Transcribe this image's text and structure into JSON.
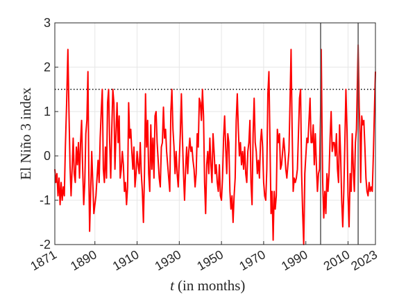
{
  "chart_data": {
    "type": "line",
    "ylabel": "El Niño 3 index",
    "xlabel_var": "t",
    "xlabel": "(in months)",
    "xlim": [
      1871,
      2023
    ],
    "ylim": [
      -2,
      3
    ],
    "xticks": [
      1871,
      1890,
      1910,
      1930,
      1950,
      1970,
      1990,
      2010,
      2023
    ],
    "yticks": [
      -2,
      -1,
      0,
      1,
      2,
      3
    ],
    "grid": true,
    "threshold": 1.5,
    "threshold_color": "#000000",
    "vlines": [
      1997.0,
      2014.8
    ],
    "vline_color": "#555555",
    "series": [
      {
        "color": "#ff0000",
        "x": [
          1871,
          1871.5,
          1872,
          1872.5,
          1873,
          1873.5,
          1874,
          1874.5,
          1875,
          1875.5,
          1876,
          1876.6,
          1877.2,
          1877.7,
          1878.2,
          1878.7,
          1879.2,
          1879.7,
          1880.2,
          1880.7,
          1881.2,
          1881.7,
          1882.2,
          1882.7,
          1883.2,
          1883.7,
          1884.2,
          1884.7,
          1885.2,
          1885.7,
          1886.2,
          1886.7,
          1887.1,
          1887.5,
          1888,
          1888.5,
          1889,
          1889.5,
          1890,
          1890.5,
          1891,
          1891.5,
          1892,
          1892.5,
          1893,
          1893.5,
          1894,
          1894.5,
          1895,
          1895.5,
          1896,
          1896.5,
          1897,
          1897.5,
          1898,
          1898.5,
          1899,
          1899.5,
          1900,
          1900.5,
          1901,
          1901.5,
          1902,
          1902.5,
          1903,
          1903.5,
          1904,
          1904.5,
          1905,
          1905.5,
          1906,
          1906.5,
          1907,
          1907.5,
          1908,
          1908.5,
          1909,
          1909.5,
          1910,
          1910.5,
          1911,
          1911.5,
          1912,
          1912.5,
          1913,
          1913.5,
          1914,
          1914.5,
          1915,
          1915.5,
          1916,
          1916.5,
          1917,
          1917.5,
          1918,
          1918.5,
          1919,
          1919.5,
          1920,
          1920.5,
          1921,
          1921.5,
          1922,
          1922.5,
          1923,
          1923.5,
          1924,
          1924.5,
          1925,
          1925.5,
          1926,
          1926.5,
          1927,
          1927.5,
          1928,
          1928.5,
          1929,
          1929.5,
          1930,
          1930.5,
          1931,
          1931.5,
          1932,
          1932.5,
          1933,
          1933.5,
          1934,
          1934.5,
          1935,
          1935.5,
          1936,
          1936.5,
          1937,
          1937.5,
          1938,
          1938.5,
          1939,
          1939.5,
          1940,
          1940.5,
          1941,
          1941.5,
          1942,
          1942.5,
          1943,
          1943.5,
          1944,
          1944.5,
          1945,
          1945.5,
          1946,
          1946.5,
          1947,
          1947.5,
          1948,
          1948.5,
          1949,
          1949.5,
          1950,
          1950.5,
          1951,
          1951.5,
          1952,
          1952.5,
          1953,
          1953.5,
          1954,
          1954.5,
          1955,
          1955.5,
          1956,
          1956.5,
          1957,
          1957.5,
          1958,
          1958.5,
          1959,
          1959.5,
          1960,
          1960.5,
          1961,
          1961.5,
          1962,
          1962.5,
          1963,
          1963.5,
          1964,
          1964.5,
          1965,
          1965.5,
          1966,
          1966.5,
          1967,
          1967.5,
          1968,
          1968.5,
          1969,
          1969.5,
          1970,
          1970.5,
          1971,
          1971.5,
          1972,
          1972.5,
          1973,
          1973.5,
          1974,
          1974.5,
          1975,
          1975.5,
          1976,
          1976.5,
          1977,
          1977.5,
          1978,
          1978.5,
          1979,
          1979.5,
          1980,
          1980.5,
          1981,
          1981.5,
          1982,
          1982.5,
          1983,
          1983.5,
          1984,
          1984.5,
          1985,
          1985.5,
          1986,
          1986.5,
          1987,
          1987.5,
          1988,
          1988.5,
          1989,
          1989.5,
          1990,
          1990.5,
          1991,
          1991.5,
          1992,
          1992.5,
          1993,
          1993.5,
          1994,
          1994.5,
          1995,
          1995.5,
          1996,
          1996.5,
          1997.0,
          1997.3,
          1997.7,
          1998.0,
          1998.5,
          1999,
          1999.5,
          2000,
          2000.5,
          2001,
          2001.5,
          2002,
          2002.5,
          2003,
          2003.5,
          2004,
          2004.5,
          2005,
          2005.5,
          2006,
          2006.5,
          2007,
          2007.5,
          2008,
          2008.5,
          2009,
          2009.5,
          2010,
          2010.5,
          2011,
          2011.5,
          2012,
          2012.5,
          2013,
          2013.5,
          2014,
          2014.8,
          2015.3,
          2015.7,
          2016,
          2016.5,
          2017,
          2017.5,
          2018,
          2018.5,
          2019,
          2019.5,
          2020,
          2020.5,
          2021,
          2021.5,
          2022,
          2022.5,
          2023
        ],
        "values": [
          -0.3,
          -0.6,
          -0.4,
          -0.9,
          -0.5,
          -1.1,
          -0.6,
          -1.0,
          -0.7,
          -0.9,
          0.2,
          1.2,
          2.4,
          1.0,
          -0.2,
          -0.9,
          -0.3,
          0.4,
          -0.4,
          -0.6,
          0.2,
          -0.2,
          0.3,
          -0.5,
          0.3,
          0.8,
          -0.3,
          -1.1,
          -0.6,
          0.5,
          0.8,
          1.9,
          -0.3,
          -1.7,
          -0.8,
          0.1,
          -0.6,
          -1.3,
          -1.1,
          -0.9,
          -0.5,
          -0.1,
          -0.6,
          0.4,
          1.0,
          1.5,
          -0.3,
          -0.6,
          0.2,
          -0.5,
          1.2,
          1.5,
          0.3,
          -0.5,
          0.6,
          1.5,
          1.2,
          -0.3,
          0.5,
          1.2,
          0.3,
          0.9,
          -0.5,
          -0.3,
          0.1,
          -0.2,
          -0.8,
          -0.6,
          -1.1,
          -0.7,
          1.2,
          0.4,
          0.6,
          0.1,
          -0.3,
          0.2,
          -0.7,
          -0.4,
          0.1,
          -0.2,
          -0.4,
          0.3,
          -0.4,
          -0.8,
          -1.5,
          -0.4,
          1.4,
          0.2,
          0.8,
          -0.4,
          -0.8,
          0.7,
          -0.3,
          0.4,
          -0.5,
          0.9,
          1.0,
          0.3,
          -0.1,
          -0.5,
          -0.7,
          0.2,
          0.3,
          1.1,
          0.4,
          0.6,
          0.1,
          -0.2,
          -0.5,
          -0.8,
          1.0,
          1.5,
          0.6,
          0.2,
          -0.4,
          0.1,
          -0.4,
          -0.7,
          -0.1,
          0.5,
          1.4,
          0.4,
          -0.4,
          -1.0,
          -0.3,
          0.2,
          -0.4,
          0.1,
          0.4,
          0.1,
          0.2,
          -0.1,
          -0.3,
          -0.7,
          -0.4,
          0.5,
          0.2,
          1.3,
          1.2,
          0.8,
          1.5,
          0.9,
          -0.6,
          -1.3,
          -0.2,
          0.1,
          -0.4,
          0.4,
          -0.2,
          -0.6,
          0.5,
          0.1,
          -0.4,
          -0.2,
          -0.6,
          -0.8,
          -0.2,
          -0.9,
          -1.0,
          -0.5,
          0.4,
          0.9,
          0.2,
          -0.4,
          0.5,
          0.3,
          -0.8,
          -1.2,
          -0.9,
          -1.5,
          -0.9,
          -0.5,
          0.8,
          1.4,
          0.6,
          0.0,
          0.3,
          -0.2,
          0.1,
          -0.3,
          0.2,
          -0.4,
          -0.6,
          0.1,
          0.3,
          0.8,
          -0.6,
          -1.1,
          0.5,
          1.3,
          0.3,
          0.1,
          -0.4,
          -0.1,
          -0.5,
          0.3,
          0.6,
          0.2,
          -0.6,
          -0.9,
          -1.0,
          -0.3,
          1.4,
          1.9,
          0.3,
          -1.3,
          -0.8,
          -1.9,
          -0.8,
          -1.2,
          -0.9,
          0.6,
          0.3,
          0.5,
          -0.3,
          -0.2,
          0.1,
          0.4,
          0.1,
          -0.3,
          -0.5,
          -0.2,
          0.1,
          1.2,
          2.4,
          0.6,
          -0.8,
          -0.5,
          -0.6,
          -0.5,
          -0.3,
          0.5,
          1.3,
          1.5,
          -0.4,
          -1.3,
          -2.0,
          -0.4,
          0.0,
          0.4,
          0.3,
          0.8,
          1.3,
          0.3,
          0.3,
          0.7,
          -0.2,
          0.5,
          -0.2,
          -0.8,
          -0.4,
          -0.3,
          1.0,
          2.4,
          0.5,
          -0.6,
          -1.4,
          -0.8,
          -1.3,
          -0.4,
          -0.8,
          -0.4,
          0.4,
          1.0,
          0.1,
          0.3,
          0.3,
          0.0,
          0.5,
          -0.3,
          -0.6,
          0.7,
          0.0,
          -1.0,
          -1.6,
          -0.8,
          0.3,
          1.5,
          0.6,
          -0.9,
          -1.6,
          -0.4,
          -0.8,
          0.5,
          -0.3,
          -0.8,
          0.3,
          0.6,
          2.5,
          1.1,
          0.5,
          -0.6,
          0.9,
          0.7,
          0.8,
          0.2,
          -0.5,
          -0.8,
          -0.9,
          -0.6,
          -0.8,
          -0.7,
          -0.8,
          0.0,
          1.0,
          1.9
        ]
      }
    ]
  }
}
